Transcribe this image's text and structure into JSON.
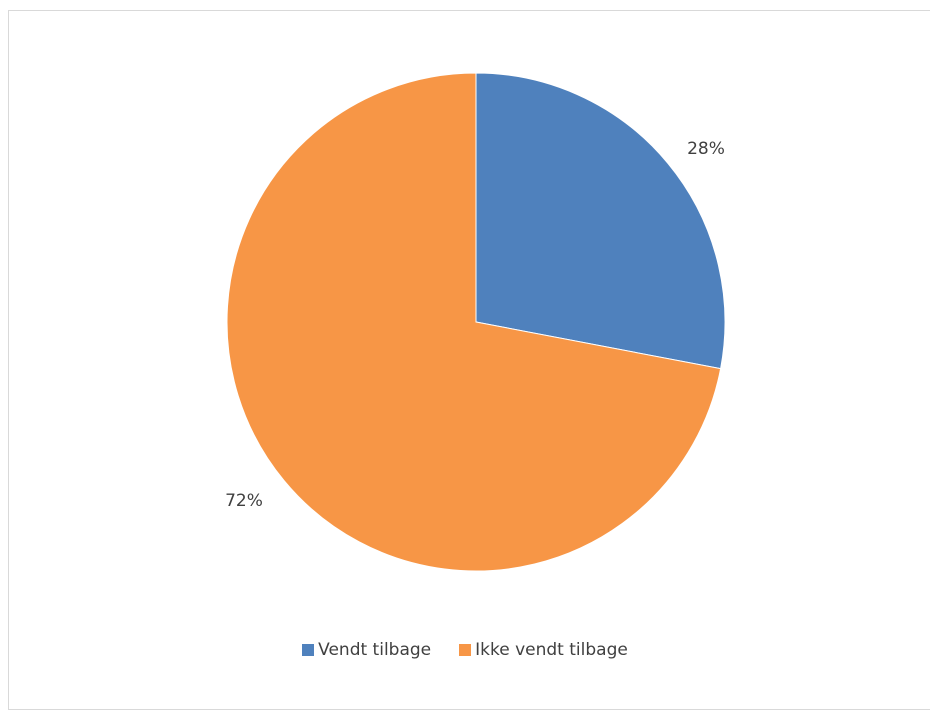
{
  "chart_data": {
    "type": "pie",
    "title": "",
    "categories": [
      "Vendt tilbage",
      "Ikke vendt tilbage"
    ],
    "values": [
      28,
      72
    ],
    "colors": [
      "#4f81bd",
      "#f79646"
    ],
    "data_labels": [
      "28%",
      "72%"
    ],
    "legend_position": "bottom"
  }
}
